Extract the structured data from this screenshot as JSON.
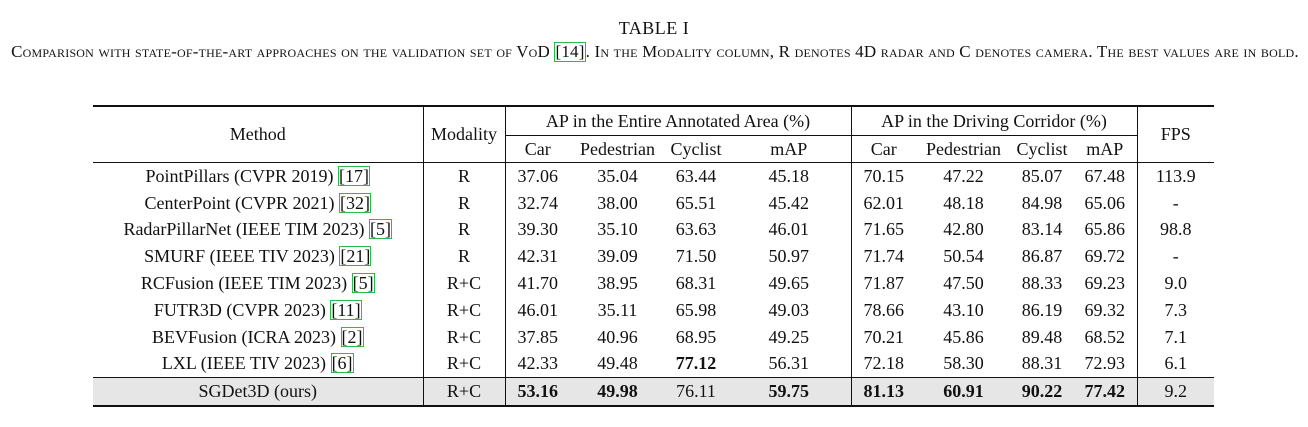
{
  "caption": {
    "title": "TABLE I",
    "text_before_ref": "Comparison with state-of-the-art approaches on the validation set of VoD ",
    "ref": "[14]",
    "text_after_ref": ". In the Modality column, R denotes 4D radar and C denotes camera. The best values are in bold."
  },
  "table": {
    "headers": {
      "method": "Method",
      "modality": "Modality",
      "group_entire": "AP in the Entire Annotated Area (%)",
      "group_corridor": "AP in the Driving Corridor (%)",
      "fps": "FPS",
      "sub": [
        "Car",
        "Pedestrian",
        "Cyclist",
        "mAP",
        "Car",
        "Pedestrian",
        "Cyclist",
        "mAP"
      ]
    },
    "rows": [
      {
        "name": "PointPillars (CVPR 2019) ",
        "ref": "[17]",
        "modality": "R",
        "values": [
          "37.06",
          "35.04",
          "63.44",
          "45.18",
          "70.15",
          "47.22",
          "85.07",
          "67.48"
        ],
        "fps": "113.9",
        "bold": []
      },
      {
        "name": "CenterPoint (CVPR 2021) ",
        "ref": "[32]",
        "modality": "R",
        "values": [
          "32.74",
          "38.00",
          "65.51",
          "45.42",
          "62.01",
          "48.18",
          "84.98",
          "65.06"
        ],
        "fps": "-",
        "bold": []
      },
      {
        "name": "RadarPillarNet (IEEE TIM 2023) ",
        "ref": "[5]",
        "modality": "R",
        "values": [
          "39.30",
          "35.10",
          "63.63",
          "46.01",
          "71.65",
          "42.80",
          "83.14",
          "65.86"
        ],
        "fps": "98.8",
        "bold": []
      },
      {
        "name": "SMURF (IEEE TIV 2023) ",
        "ref": "[21]",
        "modality": "R",
        "values": [
          "42.31",
          "39.09",
          "71.50",
          "50.97",
          "71.74",
          "50.54",
          "86.87",
          "69.72"
        ],
        "fps": "-",
        "bold": []
      },
      {
        "name": "RCFusion (IEEE TIM 2023) ",
        "ref": "[5]",
        "modality": "R+C",
        "values": [
          "41.70",
          "38.95",
          "68.31",
          "49.65",
          "71.87",
          "47.50",
          "88.33",
          "69.23"
        ],
        "fps": "9.0",
        "bold": []
      },
      {
        "name": "FUTR3D (CVPR 2023) ",
        "ref": "[11]",
        "modality": "R+C",
        "values": [
          "46.01",
          "35.11",
          "65.98",
          "49.03",
          "78.66",
          "43.10",
          "86.19",
          "69.32"
        ],
        "fps": "7.3",
        "bold": []
      },
      {
        "name": "BEVFusion (ICRA 2023) ",
        "ref": "[2]",
        "modality": "R+C",
        "values": [
          "37.85",
          "40.96",
          "68.95",
          "49.25",
          "70.21",
          "45.86",
          "89.48",
          "68.52"
        ],
        "fps": "7.1",
        "bold": []
      },
      {
        "name": "LXL (IEEE TIV 2023) ",
        "ref": "[6]",
        "modality": "R+C",
        "values": [
          "42.33",
          "49.48",
          "77.12",
          "56.31",
          "72.18",
          "58.30",
          "88.31",
          "72.93"
        ],
        "fps": "6.1",
        "bold": [
          2
        ]
      }
    ],
    "ours": {
      "name": "SGDet3D (ours)",
      "modality": "R+C",
      "values": [
        "53.16",
        "49.98",
        "76.11",
        "59.75",
        "81.13",
        "60.91",
        "90.22",
        "77.42"
      ],
      "fps": "9.2",
      "bold": [
        0,
        1,
        3,
        4,
        5,
        6,
        7
      ]
    }
  }
}
